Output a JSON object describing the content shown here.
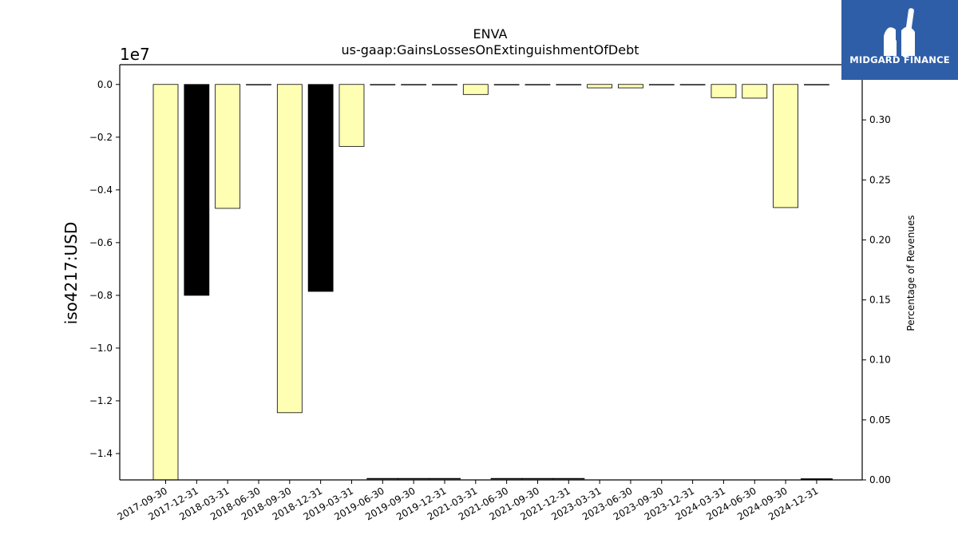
{
  "chart_data": {
    "type": "bar",
    "title": "ENVA",
    "subtitle": "us-gaap:GainsLossesOnExtinguishmentOfDebt",
    "ylabel": "iso4217:USD",
    "y_offset_label": "1e7",
    "y2label": "Percentage of Revenues",
    "ylim": [
      -1.5,
      0.075
    ],
    "y2lim": [
      0.0,
      0.346
    ],
    "yticks": [
      "0.0",
      "−0.2",
      "−0.4",
      "−0.6",
      "−0.8",
      "−1.0",
      "−1.2",
      "−1.4"
    ],
    "y2ticks": [
      "0.00",
      "0.05",
      "0.10",
      "0.15",
      "0.20",
      "0.25",
      "0.30"
    ],
    "grid": false,
    "categories": [
      "2017-09-30",
      "2017-12-31",
      "2018-03-31",
      "2018-06-30",
      "2018-09-30",
      "2018-12-31",
      "2019-03-31",
      "2019-06-30",
      "2019-09-30",
      "2019-12-31",
      "2021-03-31",
      "2021-06-30",
      "2021-09-30",
      "2021-12-31",
      "2023-03-31",
      "2023-06-30",
      "2023-09-30",
      "2023-12-31",
      "2024-03-31",
      "2024-06-30",
      "2024-09-30",
      "2024-12-31"
    ],
    "series": [
      {
        "values": [
          -1.5,
          -0.8,
          -0.47,
          0,
          -1.245,
          -0.785,
          -0.235,
          0,
          0,
          0,
          -0.038,
          0,
          0,
          0,
          -0.013,
          -0.013,
          0,
          0,
          -0.05,
          -0.052,
          -0.467,
          0
        ],
        "colors": [
          "#ffffb3",
          "#000000",
          "#ffffb3",
          "#ffffb3",
          "#ffffb3",
          "#000000",
          "#ffffb3",
          "#ffffb3",
          "#ffffb3",
          "#ffffb3",
          "#ffffb3",
          "#ffffb3",
          "#ffffb3",
          "#ffffb3",
          "#ffffb3",
          "#ffffb3",
          "#ffffb3",
          "#ffffb3",
          "#ffffb3",
          "#ffffb3",
          "#ffffb3",
          "#ffffb3"
        ]
      },
      {
        "axis": "right",
        "type": "line",
        "values": [
          null,
          null,
          null,
          null,
          null,
          null,
          null,
          0.0003,
          0.0003,
          0.0003,
          null,
          0.0003,
          0.0003,
          0.0003,
          null,
          null,
          null,
          null,
          null,
          null,
          null,
          0.0001
        ]
      }
    ]
  },
  "logo": {
    "text": "MIDGARD FINANCE"
  }
}
